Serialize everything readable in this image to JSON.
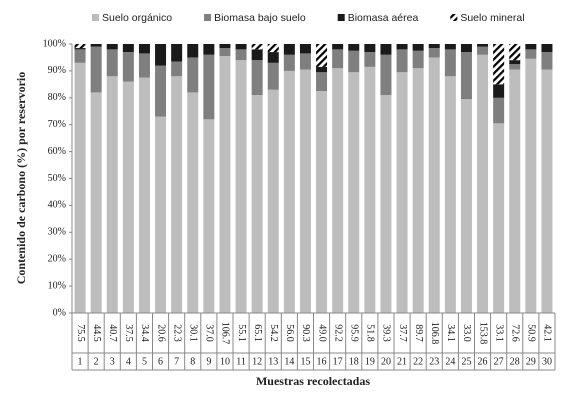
{
  "chart_data": {
    "type": "stacked_percent_bar",
    "ylabel": "Contenido de carbono (%) por reservorio",
    "xlabel": "Muestras recolectadas",
    "ylim": [
      0,
      100
    ],
    "yticks": [
      {
        "value": 0,
        "label": "0%"
      },
      {
        "value": 10,
        "label": "10%"
      },
      {
        "value": 20,
        "label": "20%"
      },
      {
        "value": 30,
        "label": "30%"
      },
      {
        "value": 40,
        "label": "40%"
      },
      {
        "value": 50,
        "label": "50%"
      },
      {
        "value": 60,
        "label": "60%"
      },
      {
        "value": 70,
        "label": "70%"
      },
      {
        "value": 80,
        "label": "80%"
      },
      {
        "value": 90,
        "label": "90%"
      },
      {
        "value": 100,
        "label": "100%"
      }
    ],
    "categories": [
      "1",
      "2",
      "3",
      "4",
      "5",
      "6",
      "7",
      "8",
      "9",
      "10",
      "11",
      "12",
      "13",
      "14",
      "15",
      "16",
      "17",
      "18",
      "19",
      "20",
      "21",
      "22",
      "23",
      "24",
      "25",
      "26",
      "27",
      "28",
      "29",
      "30"
    ],
    "table_values": [
      "75.5",
      "44.5",
      "40.7",
      "37.5",
      "34.4",
      "20.6",
      "22.3",
      "30.1",
      "37.0",
      "106.7",
      "55.1",
      "65.1",
      "54.2",
      "56.0",
      "90.3",
      "49.0",
      "92.2",
      "95.9",
      "51.8",
      "39.3",
      "37.7",
      "89.7",
      "106.8",
      "34.1",
      "33.0",
      "153.8",
      "33.1",
      "72.6",
      "50.9",
      "42.1"
    ],
    "series": [
      {
        "name": "Suelo orgánico",
        "color": "#bdbdbd",
        "values": [
          93,
          82,
          88,
          86,
          87.5,
          73,
          88,
          82,
          72,
          95.5,
          94,
          81,
          83,
          90,
          90.5,
          82.5,
          91,
          89.5,
          91.5,
          81,
          89.5,
          91,
          95,
          88,
          79.5,
          96,
          70.5,
          90.5,
          94.5,
          90.5
        ]
      },
      {
        "name": "Biomasa bajo suelo",
        "color": "#7f7f7f",
        "values": [
          5,
          17,
          10,
          11,
          9,
          19,
          5.5,
          13,
          24,
          3,
          4,
          13,
          10,
          6,
          6,
          7,
          7,
          8,
          5.5,
          15,
          8.5,
          6.5,
          3.5,
          10,
          17.5,
          3,
          9.5,
          2,
          3.5,
          6.5
        ]
      },
      {
        "name": "Biomasa aérea",
        "color": "#1a1a1a",
        "values": [
          0.5,
          1,
          2,
          3,
          3.5,
          8,
          6.5,
          5,
          4,
          1.5,
          2,
          4,
          4,
          4,
          3.5,
          2,
          2,
          2.5,
          3,
          4,
          2,
          2.5,
          1.5,
          2,
          3,
          1,
          5,
          1.5,
          2,
          3
        ]
      },
      {
        "name": "Suelo mineral",
        "color": "#000000",
        "pattern": "hatch",
        "values": [
          1.5,
          0,
          0,
          0,
          0,
          0,
          0,
          0,
          0,
          0,
          0,
          2,
          3,
          0,
          0,
          8.5,
          0,
          0,
          0,
          0,
          0,
          0,
          0,
          0,
          0,
          0,
          15,
          6,
          0,
          0
        ]
      }
    ]
  }
}
